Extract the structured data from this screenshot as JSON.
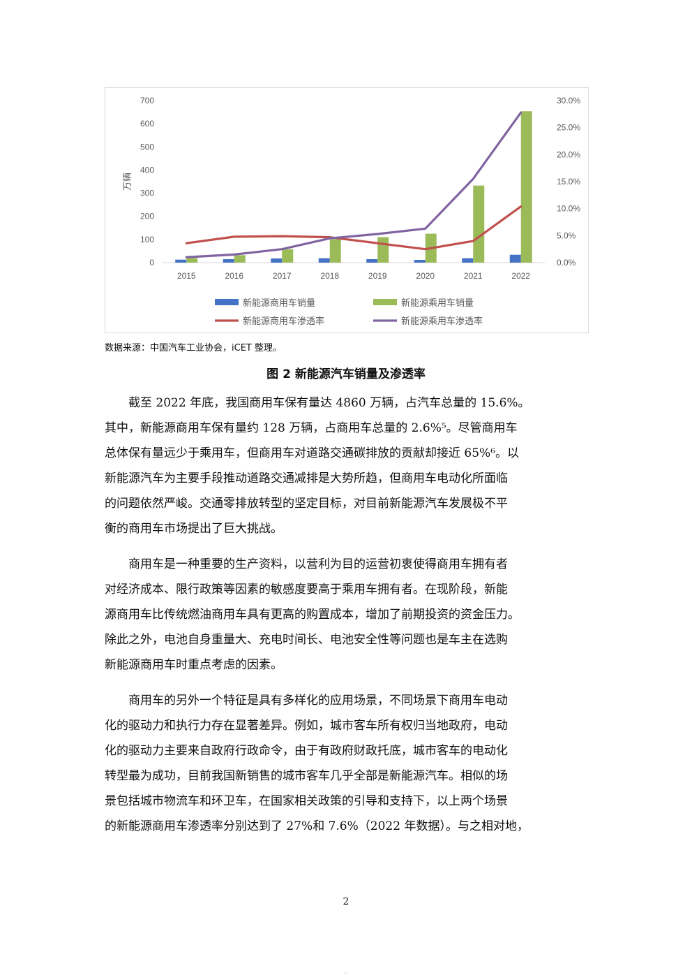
{
  "chart_data": {
    "type": "bar",
    "categories": [
      "2015",
      "2016",
      "2017",
      "2018",
      "2019",
      "2020",
      "2021",
      "2022"
    ],
    "ylabel": "万辆",
    "ylim": [
      0,
      700
    ],
    "y_ticks": [
      "0",
      "100",
      "200",
      "300",
      "400",
      "500",
      "600",
      "700"
    ],
    "y2lim": [
      0,
      30
    ],
    "y2_ticks": [
      "0.0%",
      "5.0%",
      "10.0%",
      "15.0%",
      "20.0%",
      "25.0%",
      "30.0%"
    ],
    "legend_position": "bottom",
    "series": [
      {
        "name": "新能源商用车销量",
        "kind": "bar",
        "axis": "left",
        "color": "#4472C4",
        "values": [
          13,
          15,
          18,
          19,
          15,
          12,
          19,
          34
        ]
      },
      {
        "name": "新能源乘用车销量",
        "kind": "bar",
        "axis": "left",
        "color": "#9BBB59",
        "values": [
          20,
          32,
          58,
          101,
          110,
          125,
          333,
          654
        ]
      },
      {
        "name": "新能源商用车渗透率",
        "kind": "line",
        "axis": "right",
        "color": "#C0504D",
        "values": [
          3.6,
          4.8,
          4.9,
          4.7,
          3.6,
          2.5,
          4.0,
          10.4
        ]
      },
      {
        "name": "新能源乘用车渗透率",
        "kind": "line",
        "axis": "right",
        "color": "#8064A2",
        "values": [
          1.0,
          1.5,
          2.5,
          4.5,
          5.3,
          6.3,
          15.5,
          27.8
        ]
      }
    ]
  },
  "source_note": "数据来源：中国汽车工业协会，iCET 整理。",
  "figure_caption": "图 2 新能源汽车销量及渗透率",
  "paragraphs": [
    {
      "lines": [
        "截至 2022 年底，我国商用车保有量达 4860 万辆，占汽车总量的 15.6%。",
        "其中，新能源商用车保有量约 128 万辆，占商用车总量的 2.6%⁵。尽管商用车",
        "总体保有量远少于乘用车，但商用车对道路交通碳排放的贡献却接近 65%⁶。以",
        "新能源汽车为主要手段推动道路交通减排是大势所趋，但商用车电动化所面临",
        "的问题依然严峻。交通零排放转型的坚定目标，对目前新能源汽车发展极不平",
        "衡的商用车市场提出了巨大挑战。"
      ]
    },
    {
      "lines": [
        "商用车是一种重要的生产资料，以营利为目的运营初衷使得商用车拥有者",
        "对经济成本、限行政策等因素的敏感度要高于乘用车拥有者。在现阶段，新能",
        "源商用车比传统燃油商用车具有更高的购置成本，增加了前期投资的资金压力。",
        "除此之外，电池自身重量大、充电时间长、电池安全性等问题也是车主在选购",
        "新能源商用车时重点考虑的因素。"
      ]
    },
    {
      "lines": [
        "商用车的另外一个特征是具有多样化的应用场景，不同场景下商用车电动",
        "化的驱动力和执行力存在显著差异。例如，城市客车所有权归当地政府，电动",
        "化的驱动力主要来自政府行政命令，由于有政府财政托底，城市客车的电动化",
        "转型最为成功，目前我国新销售的城市客车几乎全部是新能源汽车。相似的场",
        "景包括城市物流车和环卫车，在国家相关政策的引导和支持下，以上两个场景",
        "的新能源商用车渗透率分别达到了 27%和 7.6%（2022 年数据）。与之相对地，"
      ]
    }
  ],
  "page_number": "2"
}
